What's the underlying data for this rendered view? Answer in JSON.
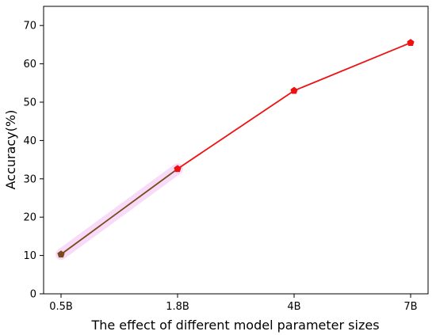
{
  "chart_data": {
    "type": "line",
    "categories": [
      "0.5B",
      "1.8B",
      "4B",
      "7B"
    ],
    "series": [
      {
        "values": [
          10.3,
          32.6,
          53.0,
          65.5
        ],
        "color": "#ee1111",
        "marker": "pentagon"
      }
    ],
    "first_segment_color": "#7a4a1a",
    "first_segment_glow_color": "#f8d8f8",
    "xlabel": "The effect of different model parameter sizes",
    "ylabel": "Accuracy(%)",
    "ylim": [
      0,
      75
    ],
    "yticks": [
      0,
      10,
      20,
      30,
      40,
      50,
      60,
      70
    ],
    "grid": false,
    "legend": "none"
  }
}
